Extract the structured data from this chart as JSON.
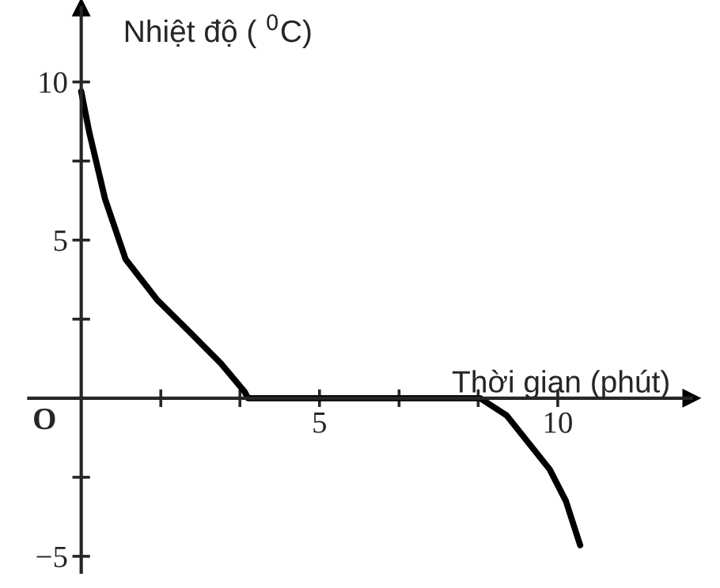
{
  "chart_data": {
    "type": "line",
    "xlabel": "Thời gian (phút)",
    "ylabel": "Nhiệt độ ( $^{0}$C)",
    "annotations": [
      "O"
    ],
    "x": [
      0,
      0.17,
      0.5,
      0.93,
      1.6,
      2.27,
      2.93,
      3.43,
      3.5,
      8.37,
      8.93,
      9.83,
      10.17,
      10.47
    ],
    "series": [
      {
        "color": "#000000",
        "values": [
          9.7,
          8.4,
          6.3,
          4.4,
          3.1,
          2.1,
          1.1,
          0.2,
          0,
          0,
          -0.55,
          -2.25,
          -3.25,
          -4.65
        ]
      }
    ],
    "xlim": [
      -1.1,
      12.8
    ],
    "ylim": [
      -5.5,
      12.35
    ],
    "xticks": [
      {
        "value": 1.67,
        "label": null
      },
      {
        "value": 3.33,
        "label": null
      },
      5,
      {
        "value": 6.67,
        "label": null
      },
      {
        "value": 8.33,
        "label": null
      },
      10
    ],
    "yticks": [
      {
        "value": -5,
        "label": "−5"
      },
      {
        "value": -2.5,
        "label": null
      },
      {
        "value": 2.5,
        "label": null
      },
      5,
      {
        "value": 7.5,
        "label": null
      },
      10
    ],
    "grid": false,
    "marker": "none",
    "line_style": "solid"
  }
}
